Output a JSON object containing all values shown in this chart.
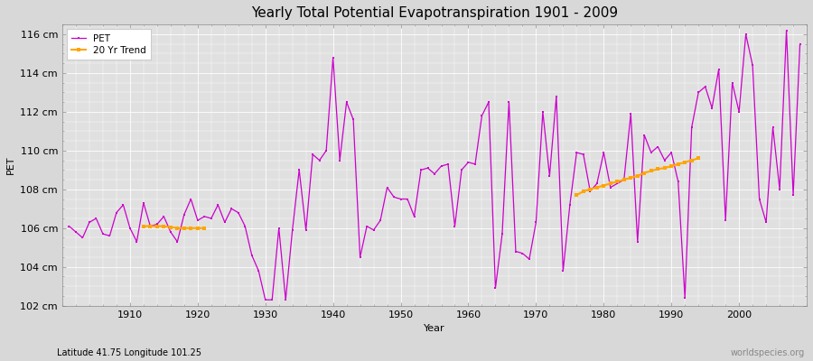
{
  "title": "Yearly Total Potential Evapotranspiration 1901 - 2009",
  "xlabel": "Year",
  "ylabel": "PET",
  "subtitle": "Latitude 41.75 Longitude 101.25",
  "watermark": "worldspecies.org",
  "ylim": [
    102,
    116.5
  ],
  "yticks": [
    102,
    104,
    106,
    108,
    110,
    112,
    114,
    116
  ],
  "ytick_labels": [
    "102 cm",
    "104 cm",
    "106 cm",
    "108 cm",
    "110 cm",
    "112 cm",
    "114 cm",
    "116 cm"
  ],
  "pet_color": "#CC00CC",
  "trend_color": "#FFA500",
  "fig_bg_color": "#D8D8D8",
  "plot_bg_color": "#E0E0E0",
  "grid_color": "#FFFFFF",
  "xlim": [
    1900,
    2010
  ],
  "xticks": [
    1910,
    1920,
    1930,
    1940,
    1950,
    1960,
    1970,
    1980,
    1990,
    2000
  ],
  "pet_data": {
    "1901": 106.1,
    "1902": 105.8,
    "1903": 105.5,
    "1904": 106.3,
    "1905": 106.5,
    "1906": 105.7,
    "1907": 105.6,
    "1908": 106.8,
    "1909": 107.2,
    "1910": 106.0,
    "1911": 105.3,
    "1912": 107.3,
    "1913": 106.1,
    "1914": 106.2,
    "1915": 106.6,
    "1916": 105.8,
    "1917": 105.3,
    "1918": 106.7,
    "1919": 107.5,
    "1920": 106.4,
    "1921": 106.6,
    "1922": 106.5,
    "1923": 107.2,
    "1924": 106.3,
    "1925": 107.0,
    "1926": 106.8,
    "1927": 106.1,
    "1928": 104.6,
    "1929": 103.8,
    "1930": 102.3,
    "1931": 102.3,
    "1932": 106.0,
    "1933": 102.3,
    "1934": 105.9,
    "1935": 109.0,
    "1936": 105.9,
    "1937": 109.8,
    "1938": 109.5,
    "1939": 110.0,
    "1940": 114.8,
    "1941": 109.5,
    "1942": 112.5,
    "1943": 111.6,
    "1944": 104.5,
    "1945": 106.1,
    "1946": 105.9,
    "1947": 106.4,
    "1948": 108.1,
    "1949": 107.6,
    "1950": 107.5,
    "1951": 107.5,
    "1952": 106.6,
    "1953": 109.0,
    "1954": 109.1,
    "1955": 108.8,
    "1956": 109.2,
    "1957": 109.3,
    "1958": 106.1,
    "1959": 109.0,
    "1960": 109.4,
    "1961": 109.3,
    "1962": 111.8,
    "1963": 112.5,
    "1964": 102.9,
    "1965": 105.7,
    "1966": 112.5,
    "1967": 104.8,
    "1968": 104.7,
    "1969": 104.4,
    "1970": 106.3,
    "1971": 112.0,
    "1972": 108.7,
    "1973": 112.8,
    "1974": 103.8,
    "1975": 107.2,
    "1976": 109.9,
    "1977": 109.8,
    "1978": 107.9,
    "1979": 108.3,
    "1980": 109.9,
    "1981": 108.1,
    "1982": 108.3,
    "1983": 108.5,
    "1984": 111.9,
    "1985": 105.3,
    "1986": 110.8,
    "1987": 109.9,
    "1988": 110.2,
    "1989": 109.5,
    "1990": 109.9,
    "1991": 108.4,
    "1992": 102.4,
    "1993": 111.2,
    "1994": 113.0,
    "1995": 113.3,
    "1996": 112.2,
    "1997": 114.2,
    "1998": 106.4,
    "1999": 113.5,
    "2000": 112.0,
    "2001": 116.0,
    "2002": 114.4,
    "2003": 107.5,
    "2004": 106.3,
    "2005": 111.2,
    "2006": 108.0,
    "2007": 116.2,
    "2008": 107.7,
    "2009": 115.5
  },
  "trend_seg1_years": [
    1912,
    1913,
    1914,
    1915,
    1916,
    1917,
    1918,
    1919,
    1920,
    1921
  ],
  "trend_seg1_vals": [
    106.1,
    106.1,
    106.1,
    106.1,
    106.05,
    106.0,
    106.0,
    106.0,
    106.0,
    106.0
  ],
  "trend_seg2_years": [
    1976,
    1977,
    1978,
    1979,
    1980,
    1981,
    1982,
    1983,
    1984,
    1985,
    1986,
    1987,
    1988,
    1989,
    1990,
    1991,
    1992,
    1993,
    1994
  ],
  "trend_seg2_vals": [
    107.7,
    107.9,
    108.0,
    108.1,
    108.2,
    108.3,
    108.4,
    108.5,
    108.6,
    108.7,
    108.85,
    108.95,
    109.05,
    109.1,
    109.2,
    109.3,
    109.4,
    109.5,
    109.6
  ],
  "legend_labels": [
    "PET",
    "20 Yr Trend"
  ],
  "title_fontsize": 11,
  "axis_label_fontsize": 8,
  "tick_fontsize": 8,
  "legend_fontsize": 7.5,
  "subtitle_fontsize": 7,
  "watermark_fontsize": 7
}
